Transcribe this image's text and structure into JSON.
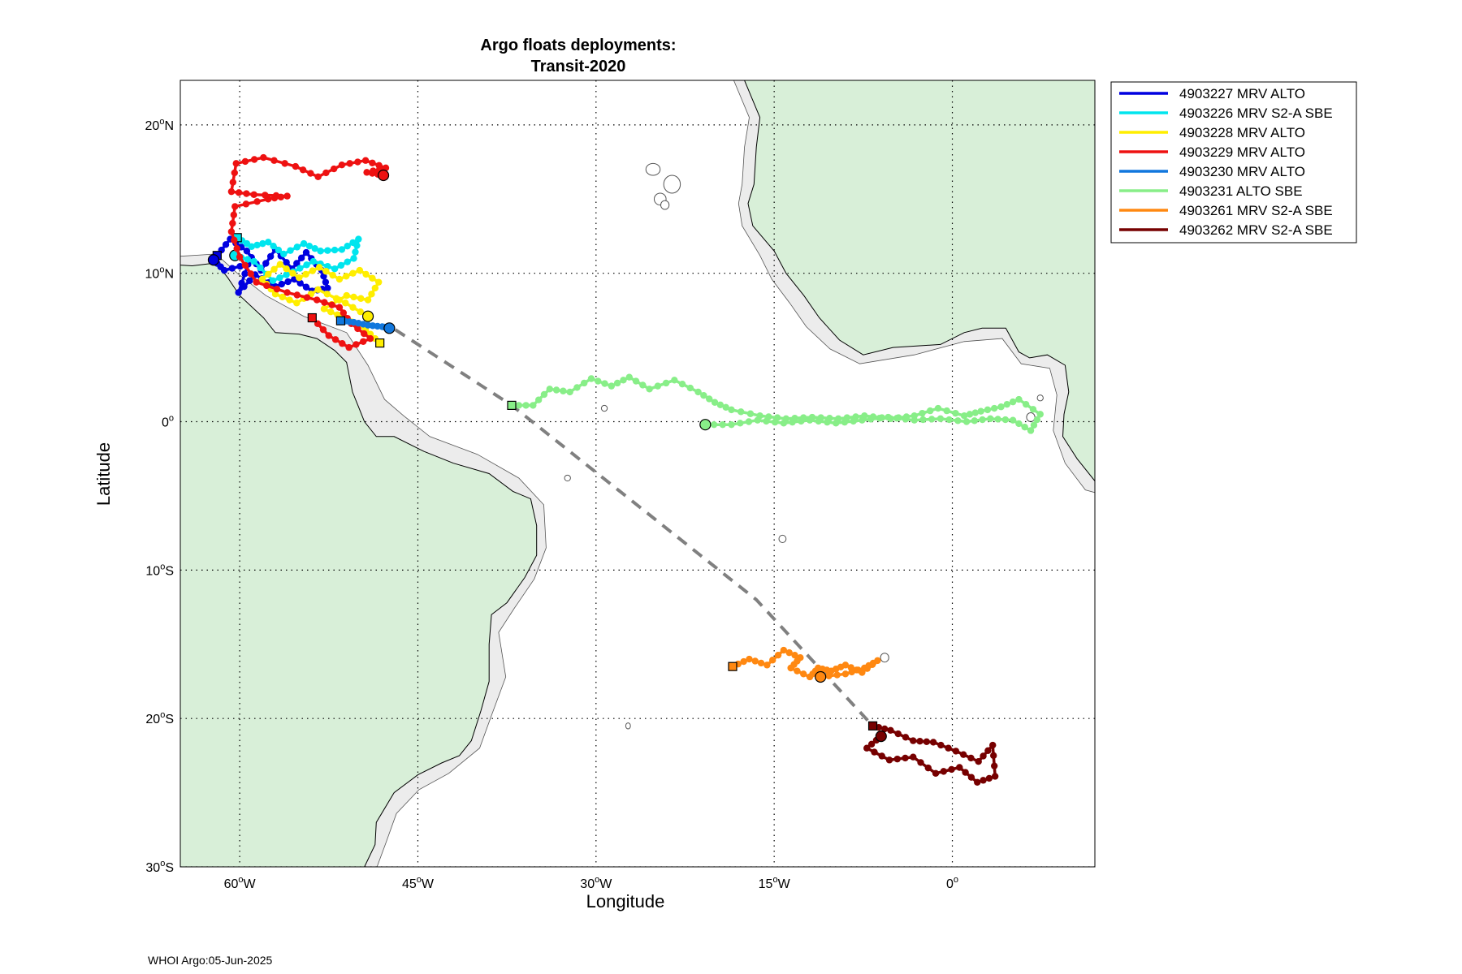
{
  "title_line1": "Argo floats deployments:",
  "title_line2": "Transit-2020",
  "xlabel": "Longitude",
  "ylabel": "Latitude",
  "footer": "WHOI Argo:05-Jun-2025",
  "lat_ticks": [
    {
      "value": 20,
      "label": "20",
      "hemi": "N"
    },
    {
      "value": 10,
      "label": "10",
      "hemi": "N"
    },
    {
      "value": 0,
      "label": "0",
      "hemi": ""
    },
    {
      "value": -10,
      "label": "10",
      "hemi": "S"
    },
    {
      "value": -20,
      "label": "20",
      "hemi": "S"
    },
    {
      "value": -30,
      "label": "30",
      "hemi": "S"
    }
  ],
  "lon_ticks": [
    {
      "value": -60,
      "label": "60",
      "hemi": "W"
    },
    {
      "value": -45,
      "label": "45",
      "hemi": "W"
    },
    {
      "value": -30,
      "label": "30",
      "hemi": "W"
    },
    {
      "value": -15,
      "label": "15",
      "hemi": "W"
    },
    {
      "value": 0,
      "label": "0",
      "hemi": ""
    }
  ],
  "colors": {
    "land": "#d8efd8",
    "shelf": "#ececec",
    "contour": "#555555",
    "grid": "#000000",
    "cruise_track": "#808080"
  },
  "chart_data": {
    "type": "map-tracks",
    "lon_range": [
      -65,
      12
    ],
    "lat_range": [
      -30,
      23
    ],
    "grid": true,
    "legend_placement": "outside-top-right",
    "cruise_track": [
      [
        -46.9,
        6.2
      ],
      [
        -37.1,
        1.1
      ],
      [
        -16.5,
        -12.0
      ],
      [
        -6.7,
        -20.5
      ]
    ],
    "floats": [
      {
        "name": "4903227 MRV ALTO",
        "color": "#0000e0",
        "track": [
          [
            -61.9,
            11.2
          ],
          [
            -60.8,
            12.3
          ],
          [
            -59.4,
            11.5
          ],
          [
            -58.2,
            10.2
          ],
          [
            -57.0,
            11.6
          ],
          [
            -55.6,
            10.3
          ],
          [
            -54.4,
            11.4
          ],
          [
            -53.1,
            10.2
          ],
          [
            -52.6,
            9.0
          ],
          [
            -53.9,
            8.8
          ],
          [
            -55.4,
            9.6
          ],
          [
            -57.0,
            9.1
          ],
          [
            -58.7,
            9.9
          ],
          [
            -60.1,
            8.7
          ],
          [
            -59.3,
            10.6
          ],
          [
            -61.3,
            10.2
          ],
          [
            -62.2,
            10.9
          ]
        ]
      },
      {
        "name": "4903226 MRV S2-A SBE",
        "color": "#00e5ee",
        "track": [
          [
            -60.2,
            12.4
          ],
          [
            -59.0,
            11.8
          ],
          [
            -57.6,
            12.1
          ],
          [
            -56.3,
            11.3
          ],
          [
            -54.6,
            12.0
          ],
          [
            -53.2,
            11.5
          ],
          [
            -51.4,
            11.6
          ],
          [
            -50.0,
            12.3
          ],
          [
            -50.4,
            11.0
          ],
          [
            -52.0,
            10.3
          ],
          [
            -53.8,
            10.8
          ],
          [
            -55.5,
            10.1
          ],
          [
            -57.2,
            9.5
          ],
          [
            -58.8,
            10.8
          ],
          [
            -60.4,
            11.2
          ]
        ]
      },
      {
        "name": "4903228 MRV ALTO",
        "color": "#ffee00",
        "track": [
          [
            -48.2,
            5.3
          ],
          [
            -49.4,
            6.2
          ],
          [
            -51.2,
            7.0
          ],
          [
            -52.9,
            7.6
          ],
          [
            -51.0,
            8.5
          ],
          [
            -49.2,
            8.2
          ],
          [
            -48.3,
            9.4
          ],
          [
            -49.9,
            10.2
          ],
          [
            -51.6,
            9.6
          ],
          [
            -53.3,
            10.4
          ],
          [
            -55.0,
            9.7
          ],
          [
            -56.6,
            10.6
          ],
          [
            -58.1,
            9.6
          ],
          [
            -57.0,
            8.6
          ],
          [
            -55.2,
            8.0
          ],
          [
            -53.4,
            8.9
          ],
          [
            -51.1,
            8.0
          ],
          [
            -49.2,
            7.1
          ]
        ]
      },
      {
        "name": "4903229 MRV ALTO",
        "color": "#ee1111",
        "track": [
          [
            -53.9,
            7.0
          ],
          [
            -52.5,
            5.8
          ],
          [
            -50.8,
            5.0
          ],
          [
            -49.0,
            5.6
          ],
          [
            -50.6,
            6.6
          ],
          [
            -51.6,
            7.7
          ],
          [
            -53.5,
            8.2
          ],
          [
            -56.0,
            8.7
          ],
          [
            -58.6,
            9.4
          ],
          [
            -60.0,
            11.1
          ],
          [
            -60.7,
            12.8
          ],
          [
            -60.4,
            14.5
          ],
          [
            -57.6,
            15.0
          ],
          [
            -56.0,
            15.2
          ],
          [
            -58.8,
            15.3
          ],
          [
            -60.7,
            15.5
          ],
          [
            -60.3,
            17.4
          ],
          [
            -58.0,
            17.8
          ],
          [
            -55.3,
            17.2
          ],
          [
            -53.4,
            16.5
          ],
          [
            -51.4,
            17.3
          ],
          [
            -49.4,
            17.6
          ],
          [
            -47.7,
            17.1
          ],
          [
            -49.3,
            16.8
          ],
          [
            -47.9,
            16.6
          ]
        ]
      },
      {
        "name": "4903230 MRV ALTO",
        "color": "#1177dd",
        "track": [
          [
            -51.5,
            6.8
          ],
          [
            -50.4,
            6.7
          ],
          [
            -49.2,
            6.5
          ],
          [
            -48.0,
            6.4
          ],
          [
            -47.4,
            6.3
          ]
        ]
      },
      {
        "name": "4903231 ALTO SBE",
        "color": "#88ee88",
        "track": [
          [
            -37.1,
            1.1
          ],
          [
            -35.3,
            1.1
          ],
          [
            -33.9,
            2.2
          ],
          [
            -32.2,
            2.0
          ],
          [
            -30.4,
            2.9
          ],
          [
            -28.7,
            2.4
          ],
          [
            -27.2,
            3.0
          ],
          [
            -25.5,
            2.2
          ],
          [
            -23.4,
            2.8
          ],
          [
            -21.4,
            2.0
          ],
          [
            -20.0,
            1.3
          ],
          [
            -18.6,
            0.8
          ],
          [
            -16.2,
            0.4
          ],
          [
            -14.0,
            0.2
          ],
          [
            -11.8,
            0.3
          ],
          [
            -9.6,
            0.2
          ],
          [
            -7.4,
            0.4
          ],
          [
            -5.2,
            0.2
          ],
          [
            -3.2,
            0.4
          ],
          [
            -1.2,
            0.9
          ],
          [
            1.0,
            0.4
          ],
          [
            2.4,
            0.7
          ],
          [
            4.1,
            1.0
          ],
          [
            5.6,
            1.5
          ],
          [
            7.4,
            0.5
          ],
          [
            6.6,
            -0.6
          ],
          [
            5.1,
            0.1
          ],
          [
            3.2,
            0.2
          ],
          [
            1.2,
            0.0
          ],
          [
            -1.0,
            0.2
          ],
          [
            -3.2,
            0.1
          ],
          [
            -5.4,
            0.3
          ],
          [
            -7.6,
            0.1
          ],
          [
            -9.8,
            -0.1
          ],
          [
            -12.0,
            0.1
          ],
          [
            -14.2,
            -0.1
          ],
          [
            -16.4,
            0.1
          ],
          [
            -18.6,
            -0.2
          ],
          [
            -20.8,
            -0.2
          ]
        ]
      },
      {
        "name": "4903261 MRV S2-A SBE",
        "color": "#ff8811",
        "track": [
          [
            -18.5,
            -16.5
          ],
          [
            -17.1,
            -16.0
          ],
          [
            -15.6,
            -16.4
          ],
          [
            -14.2,
            -15.4
          ],
          [
            -12.8,
            -15.9
          ],
          [
            -13.6,
            -16.6
          ],
          [
            -12.0,
            -17.2
          ],
          [
            -11.3,
            -16.6
          ],
          [
            -10.2,
            -16.8
          ],
          [
            -9.0,
            -16.4
          ],
          [
            -7.6,
            -16.9
          ],
          [
            -6.3,
            -16.1
          ],
          [
            -7.4,
            -16.6
          ],
          [
            -9.0,
            -17.0
          ],
          [
            -11.1,
            -17.2
          ]
        ]
      },
      {
        "name": "4903262 MRV S2-A SBE",
        "color": "#770000",
        "track": [
          [
            -6.7,
            -20.5
          ],
          [
            -5.2,
            -20.8
          ],
          [
            -3.3,
            -21.5
          ],
          [
            -1.6,
            -21.6
          ],
          [
            0.3,
            -22.2
          ],
          [
            2.2,
            -22.9
          ],
          [
            3.4,
            -21.8
          ],
          [
            3.6,
            -23.9
          ],
          [
            2.1,
            -24.3
          ],
          [
            0.6,
            -23.3
          ],
          [
            -1.4,
            -23.7
          ],
          [
            -3.3,
            -22.6
          ],
          [
            -5.3,
            -22.8
          ],
          [
            -7.2,
            -22.0
          ],
          [
            -6.0,
            -21.2
          ]
        ]
      }
    ]
  }
}
